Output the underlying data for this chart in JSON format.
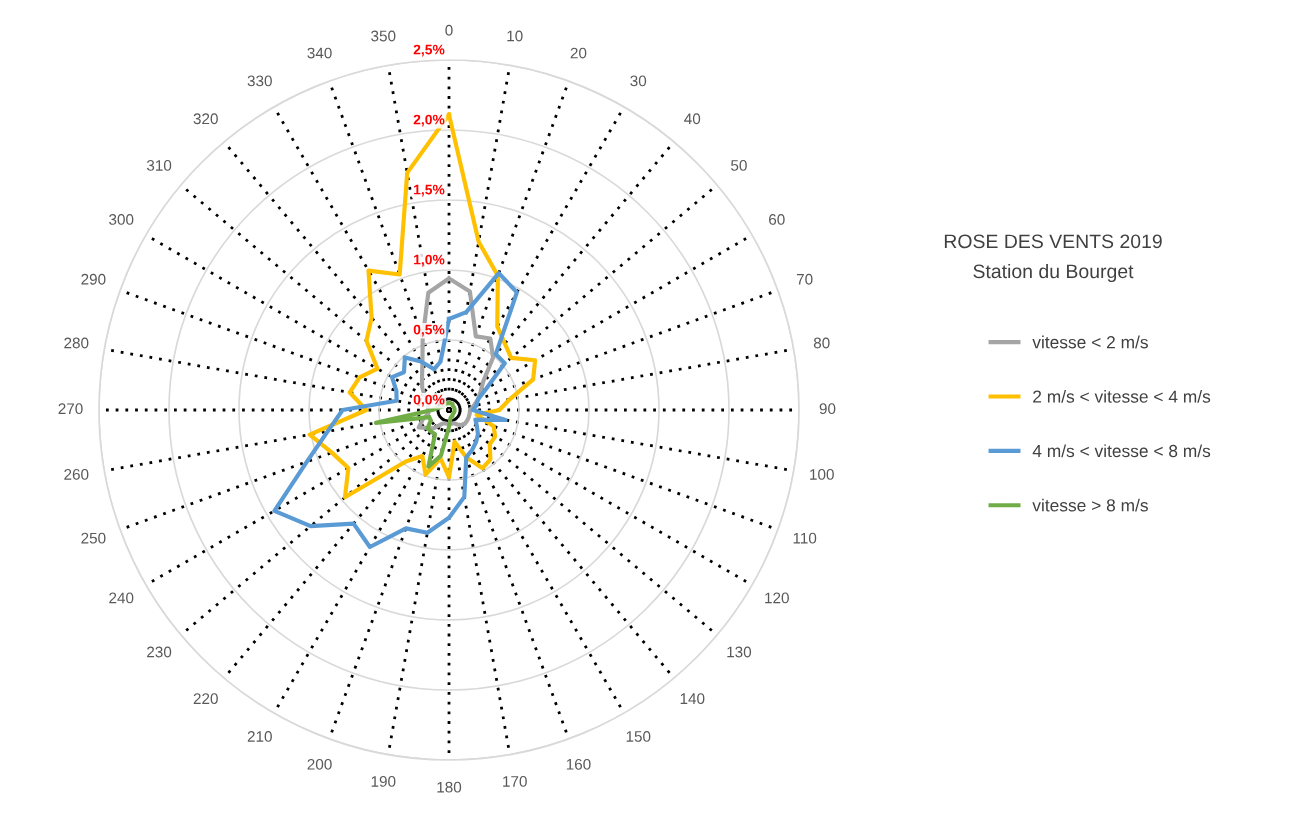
{
  "chart_data": {
    "type": "radar",
    "title": "ROSE DES VENTS 2019",
    "subtitle": "Station du Bourget",
    "categories": [
      "0",
      "10",
      "20",
      "30",
      "40",
      "50",
      "60",
      "70",
      "80",
      "90",
      "100",
      "110",
      "120",
      "130",
      "140",
      "150",
      "160",
      "170",
      "180",
      "190",
      "200",
      "210",
      "220",
      "230",
      "240",
      "250",
      "260",
      "270",
      "280",
      "290",
      "300",
      "310",
      "320",
      "330",
      "340",
      "350"
    ],
    "ylim": [
      0,
      2.5
    ],
    "yticks": [
      {
        "value": 0,
        "label": "0,0%"
      },
      {
        "value": 0.5,
        "label": "0,5%"
      },
      {
        "value": 1.0,
        "label": "1,0%"
      },
      {
        "value": 1.5,
        "label": "1,5%"
      },
      {
        "value": 2.0,
        "label": "2,0%"
      },
      {
        "value": 2.5,
        "label": "2,5%"
      }
    ],
    "grid": true,
    "legend": "right",
    "marker": "none",
    "line_style": "solid",
    "series": [
      {
        "name": "vitesse < 2 m/s",
        "color": "#a5a5a5",
        "values": [
          0.94,
          0.86,
          0.56,
          0.59,
          0.49,
          0.32,
          0.26,
          0.22,
          0.18,
          0.15,
          0.15,
          0.15,
          0.15,
          0.15,
          0.14,
          0.12,
          0.1,
          0.1,
          0.1,
          0.1,
          0.1,
          0.12,
          0.17,
          0.2,
          0.25,
          0.2,
          0.15,
          0.15,
          0.15,
          0.17,
          0.2,
          0.25,
          0.3,
          0.38,
          0.55,
          0.85
        ]
      },
      {
        "name": "2 m/s < vitesse < 4 m/s",
        "color": "#ffc000",
        "values": [
          2.11,
          1.22,
          1.02,
          0.69,
          0.62,
          0.58,
          0.71,
          0.64,
          0.44,
          0.36,
          0.2,
          0.34,
          0.38,
          0.38,
          0.46,
          0.48,
          0.36,
          0.23,
          0.48,
          0.35,
          0.49,
          0.38,
          0.48,
          0.97,
          0.83,
          0.89,
          1.01,
          0.59,
          0.72,
          0.68,
          0.59,
          0.77,
          0.86,
          1.15,
          1.03,
          1.72
        ]
      },
      {
        "name": "4 m/s < vitesse < 8 m/s",
        "color": "#5b9bd5",
        "values": [
          0.65,
          0.71,
          1.04,
          0.97,
          0.52,
          0.52,
          0.31,
          0.22,
          0.2,
          0.17,
          0.41,
          0.2,
          0.23,
          0.27,
          0.3,
          0.33,
          0.36,
          0.63,
          0.77,
          0.89,
          0.9,
          1.13,
          1.06,
          1.29,
          1.44,
          1.08,
          0.88,
          0.76,
          0.38,
          0.4,
          0.47,
          0.42,
          0.49,
          0.4,
          0.31,
          0.35
        ]
      },
      {
        "name": "vitesse > 8 m/s",
        "color": "#70ad47",
        "values": [
          0.05,
          0.05,
          0.05,
          0.05,
          0.04,
          0.04,
          0.04,
          0.04,
          0.04,
          0.04,
          0.04,
          0.04,
          0.04,
          0.04,
          0.04,
          0.05,
          0.05,
          0.06,
          0.12,
          0.33,
          0.43,
          0.2,
          0.2,
          0.2,
          0.15,
          0.15,
          0.53,
          0.12,
          0.08,
          0.06,
          0.05,
          0.05,
          0.05,
          0.05,
          0.05,
          0.05
        ]
      }
    ]
  }
}
